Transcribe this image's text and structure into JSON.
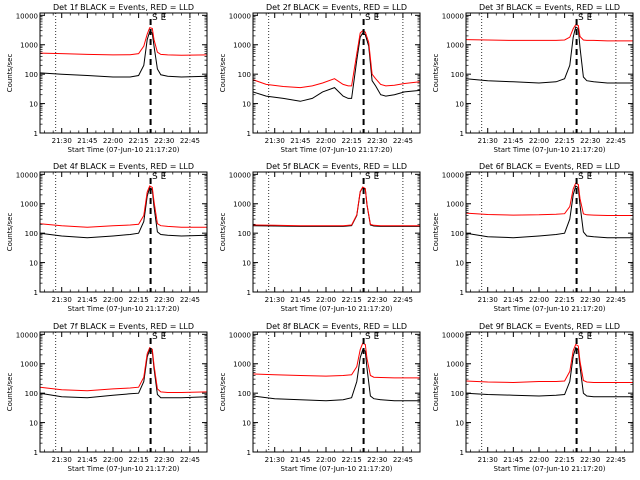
{
  "colors": {
    "events": "#000000",
    "lld": "#ff0000",
    "axes": "#000000",
    "background": "#ffffff"
  },
  "shared": {
    "ylabel": "Counts/sec",
    "xlabel": "Start Time (07-Jun-10 21:17:20)",
    "x_ticks": [
      "21:30",
      "21:45",
      "22:00",
      "22:15",
      "22:30",
      "22:45"
    ],
    "x_tick_minutes": [
      30,
      45,
      60,
      75,
      90,
      105
    ],
    "y_ticks": [
      "1",
      "10",
      "100",
      "1000",
      "10000"
    ],
    "y_tick_values": [
      1,
      10,
      100,
      1000,
      10000
    ],
    "x_range_minutes_after_21h": [
      17.3,
      115
    ],
    "y_range": [
      1,
      12000
    ],
    "y_scale": "log",
    "vline_dotted_minutes": [
      26.5,
      105
    ],
    "vline_dashed_minute": 82,
    "markers": [
      "S",
      "E"
    ],
    "marker_minutes": [
      84.5,
      89.5
    ]
  },
  "chart_data": [
    {
      "type": "line",
      "title": "Det 1f BLACK = Events, RED = LLD",
      "series": [
        {
          "name": "Events",
          "color": "#000000",
          "x": [
            17.3,
            30,
            45,
            60,
            70,
            75,
            78,
            80,
            81.5,
            83,
            84,
            86,
            88,
            92,
            100,
            115
          ],
          "values": [
            110,
            100,
            90,
            80,
            80,
            90,
            200,
            1500,
            2800,
            2500,
            900,
            150,
            95,
            85,
            80,
            85
          ]
        },
        {
          "name": "LLD",
          "color": "#ff0000",
          "x": [
            17.3,
            30,
            45,
            60,
            70,
            75,
            78,
            80,
            81.5,
            83,
            84,
            86,
            88,
            92,
            100,
            115
          ],
          "values": [
            520,
            500,
            470,
            450,
            460,
            500,
            900,
            2300,
            3800,
            3600,
            1500,
            560,
            470,
            450,
            440,
            450
          ]
        }
      ]
    },
    {
      "type": "line",
      "title": "Det 2f BLACK = Events, RED = LLD",
      "series": [
        {
          "name": "Events",
          "color": "#000000",
          "x": [
            17.3,
            25,
            35,
            45,
            52,
            58,
            65,
            70,
            73,
            75,
            78,
            80,
            81.5,
            83,
            85,
            87,
            89,
            92,
            95,
            100,
            106,
            115
          ],
          "values": [
            25,
            18,
            15,
            12,
            15,
            25,
            35,
            18,
            15,
            15,
            300,
            1800,
            2500,
            2200,
            900,
            60,
            40,
            20,
            18,
            20,
            25,
            28
          ]
        },
        {
          "name": "LLD",
          "color": "#ff0000",
          "x": [
            17.3,
            25,
            35,
            45,
            52,
            58,
            65,
            70,
            73,
            75,
            78,
            80,
            81.5,
            83,
            85,
            87,
            89,
            92,
            95,
            100,
            106,
            115
          ],
          "values": [
            65,
            45,
            38,
            35,
            40,
            50,
            70,
            45,
            40,
            40,
            500,
            2500,
            3000,
            2700,
            1200,
            100,
            70,
            45,
            40,
            42,
            48,
            55
          ]
        }
      ]
    },
    {
      "type": "line",
      "title": "Det 3f BLACK = Events, RED = LLD",
      "series": [
        {
          "name": "Events",
          "color": "#000000",
          "x": [
            17.3,
            30,
            45,
            60,
            70,
            75,
            78,
            80,
            81.5,
            83,
            84,
            86,
            88,
            92,
            100,
            115
          ],
          "values": [
            70,
            60,
            55,
            50,
            55,
            70,
            200,
            1800,
            4000,
            3500,
            800,
            80,
            60,
            55,
            50,
            50
          ]
        },
        {
          "name": "LLD",
          "color": "#ff0000",
          "x": [
            17.3,
            30,
            45,
            60,
            70,
            75,
            78,
            80,
            81.5,
            83,
            84,
            86,
            88,
            92,
            100,
            115
          ],
          "values": [
            1500,
            1450,
            1400,
            1400,
            1400,
            1450,
            1800,
            3500,
            4800,
            4500,
            1900,
            1450,
            1400,
            1400,
            1350,
            1350
          ]
        }
      ]
    },
    {
      "type": "line",
      "title": "Det 4f BLACK = Events, RED = LLD",
      "series": [
        {
          "name": "Events",
          "color": "#000000",
          "x": [
            17.3,
            30,
            45,
            60,
            70,
            75,
            78,
            80,
            81.5,
            83,
            84,
            86,
            88,
            92,
            100,
            115
          ],
          "values": [
            100,
            80,
            70,
            80,
            90,
            100,
            250,
            1800,
            3500,
            3000,
            800,
            110,
            90,
            85,
            80,
            85
          ]
        },
        {
          "name": "LLD",
          "color": "#ff0000",
          "x": [
            17.3,
            30,
            45,
            60,
            70,
            75,
            78,
            80,
            81.5,
            83,
            84,
            86,
            88,
            92,
            100,
            115
          ],
          "values": [
            210,
            180,
            160,
            180,
            190,
            200,
            400,
            2500,
            4000,
            3600,
            1200,
            210,
            180,
            170,
            160,
            160
          ]
        }
      ]
    },
    {
      "type": "line",
      "title": "Det 5f BLACK = Events, RED = LLD",
      "series": [
        {
          "name": "Events",
          "color": "#000000",
          "x": [
            17.3,
            30,
            45,
            60,
            70,
            75,
            78,
            80,
            81.5,
            83,
            84,
            86,
            88,
            92,
            100,
            115
          ],
          "values": [
            180,
            175,
            170,
            170,
            170,
            180,
            400,
            2500,
            3600,
            3200,
            900,
            190,
            175,
            170,
            170,
            170
          ]
        },
        {
          "name": "LLD",
          "color": "#ff0000",
          "x": [
            17.3,
            30,
            45,
            60,
            70,
            75,
            78,
            80,
            81.5,
            83,
            84,
            86,
            88,
            92,
            100,
            115
          ],
          "values": [
            190,
            185,
            180,
            180,
            180,
            190,
            420,
            2600,
            3700,
            3300,
            950,
            200,
            185,
            180,
            180,
            180
          ]
        }
      ]
    },
    {
      "type": "line",
      "title": "Det 6f BLACK = Events, RED = LLD",
      "series": [
        {
          "name": "Events",
          "color": "#000000",
          "x": [
            17.3,
            30,
            45,
            60,
            70,
            75,
            78,
            80,
            81.5,
            83,
            84,
            86,
            88,
            92,
            100,
            115
          ],
          "values": [
            100,
            75,
            70,
            80,
            90,
            100,
            300,
            2000,
            4000,
            3500,
            900,
            110,
            80,
            75,
            70,
            70
          ]
        },
        {
          "name": "LLD",
          "color": "#ff0000",
          "x": [
            17.3,
            30,
            45,
            60,
            70,
            75,
            78,
            80,
            81.5,
            83,
            84,
            86,
            88,
            92,
            100,
            115
          ],
          "values": [
            480,
            430,
            410,
            420,
            440,
            460,
            800,
            3200,
            5000,
            4500,
            1500,
            450,
            420,
            410,
            400,
            400
          ]
        }
      ]
    },
    {
      "type": "line",
      "title": "Det 7f BLACK = Events, RED = LLD",
      "series": [
        {
          "name": "Events",
          "color": "#000000",
          "x": [
            17.3,
            30,
            45,
            60,
            70,
            75,
            78,
            80,
            81.5,
            83,
            84,
            86,
            88,
            92,
            100,
            115
          ],
          "values": [
            100,
            75,
            70,
            85,
            95,
            100,
            250,
            1700,
            3000,
            2600,
            700,
            90,
            70,
            70,
            70,
            75
          ]
        },
        {
          "name": "LLD",
          "color": "#ff0000",
          "x": [
            17.3,
            30,
            45,
            60,
            70,
            75,
            78,
            80,
            81.5,
            83,
            84,
            86,
            88,
            92,
            100,
            115
          ],
          "values": [
            160,
            130,
            120,
            140,
            150,
            160,
            350,
            2200,
            3500,
            3100,
            900,
            140,
            110,
            105,
            105,
            110
          ]
        }
      ]
    },
    {
      "type": "line",
      "title": "Det 8f BLACK = Events, RED = LLD",
      "series": [
        {
          "name": "Events",
          "color": "#000000",
          "x": [
            17.3,
            30,
            45,
            60,
            70,
            75,
            78,
            80,
            81.5,
            83,
            84,
            86,
            88,
            92,
            100,
            115
          ],
          "values": [
            80,
            65,
            60,
            55,
            60,
            70,
            250,
            1600,
            3000,
            2700,
            700,
            80,
            65,
            60,
            55,
            55
          ]
        },
        {
          "name": "LLD",
          "color": "#ff0000",
          "x": [
            17.3,
            30,
            45,
            60,
            70,
            75,
            78,
            80,
            81.5,
            83,
            84,
            86,
            88,
            92,
            100,
            115
          ],
          "values": [
            450,
            420,
            400,
            380,
            400,
            420,
            800,
            3000,
            5000,
            4500,
            1500,
            400,
            350,
            340,
            330,
            330
          ]
        }
      ]
    },
    {
      "type": "line",
      "title": "Det 9f BLACK = Events, RED = LLD",
      "series": [
        {
          "name": "Events",
          "color": "#000000",
          "x": [
            17.3,
            30,
            45,
            60,
            70,
            75,
            78,
            80,
            81.5,
            83,
            84,
            86,
            88,
            92,
            100,
            115
          ],
          "values": [
            100,
            90,
            85,
            80,
            85,
            90,
            250,
            1800,
            3500,
            3000,
            800,
            100,
            80,
            75,
            75,
            75
          ]
        },
        {
          "name": "LLD",
          "color": "#ff0000",
          "x": [
            17.3,
            30,
            45,
            60,
            70,
            75,
            78,
            80,
            81.5,
            83,
            84,
            86,
            88,
            92,
            100,
            115
          ],
          "values": [
            260,
            240,
            230,
            250,
            250,
            260,
            550,
            2800,
            4500,
            4000,
            1200,
            270,
            240,
            230,
            230,
            230
          ]
        }
      ]
    }
  ]
}
